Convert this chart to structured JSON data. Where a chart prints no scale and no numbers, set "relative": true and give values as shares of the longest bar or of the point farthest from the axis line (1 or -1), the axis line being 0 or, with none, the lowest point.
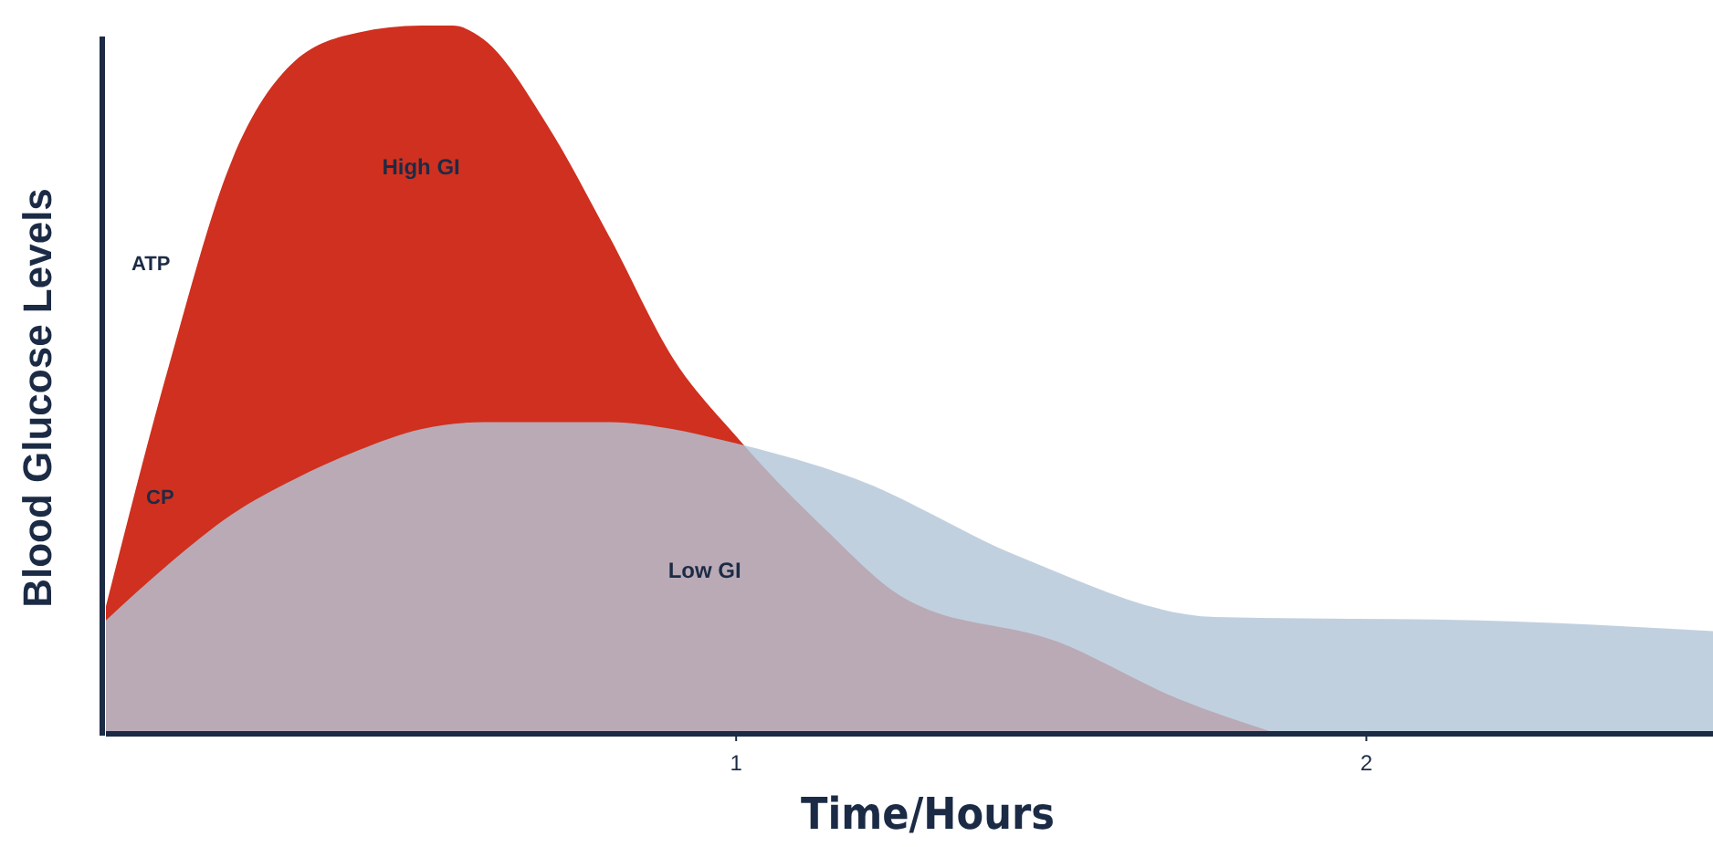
{
  "chart_data": {
    "type": "area",
    "relative": true,
    "xlabel": "Time/Hours",
    "ylabel": "Blood Glucose Levels",
    "xlim": [
      0,
      2.55
    ],
    "xticks": [
      1,
      2
    ],
    "tick_labels": "x",
    "grid": false,
    "series": [
      {
        "name": "High GI",
        "color": "#d0301f",
        "x": [
          0,
          0.1,
          0.2,
          0.3,
          0.4,
          0.5,
          0.55,
          0.6,
          0.7,
          0.8,
          0.9,
          1.0,
          1.14,
          1.27,
          1.51,
          1.7,
          1.86
        ],
        "values": [
          0.18,
          0.52,
          0.81,
          0.95,
          0.99,
          1,
          1,
          0.98,
          0.86,
          0.7,
          0.53,
          0.42,
          0.29,
          0.19,
          0.13,
          0.05,
          0
        ]
      },
      {
        "name": "Low GI",
        "color": "#b3c6d8",
        "x": [
          0,
          0.1,
          0.2,
          0.3,
          0.4,
          0.5,
          0.6,
          0.7,
          0.8,
          0.9,
          1.0,
          1.19,
          1.45,
          1.76,
          2.18,
          2.55
        ],
        "values": [
          0.16,
          0.24,
          0.31,
          0.36,
          0.4,
          0.43,
          0.44,
          0.44,
          0.44,
          0.43,
          0.41,
          0.36,
          0.25,
          0.165,
          0.16,
          0.145
        ]
      }
    ],
    "annotations": [
      "ATP",
      "CP"
    ]
  }
}
